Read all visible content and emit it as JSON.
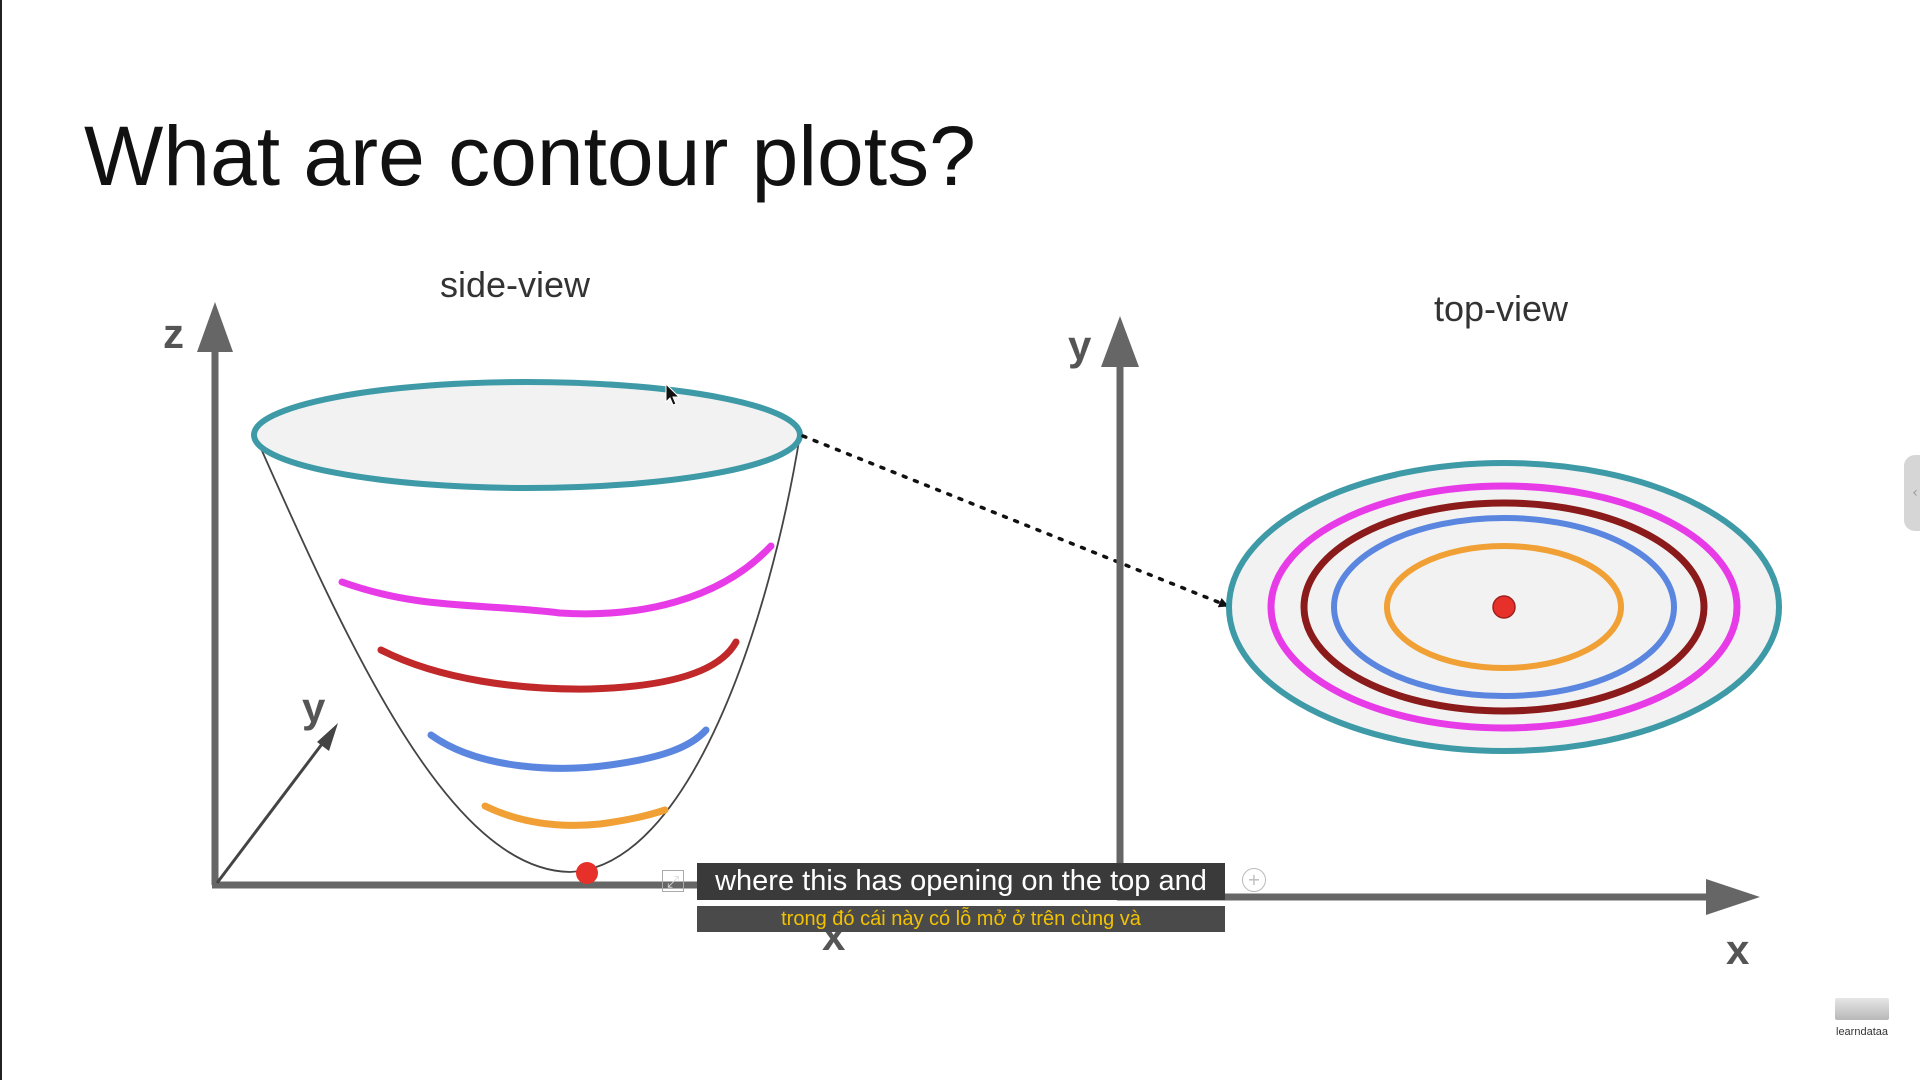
{
  "slide": {
    "title": "What are contour plots?",
    "side_view_label": "side-view",
    "top_view_label": "top-view"
  },
  "axes": {
    "side": {
      "x": "x",
      "y": "y",
      "z": "z"
    },
    "top": {
      "x": "x",
      "y": "y"
    }
  },
  "contour_levels": [
    {
      "name": "orange",
      "color": "#f0a035"
    },
    {
      "name": "blue",
      "color": "#5a86e0"
    },
    {
      "name": "dark-red",
      "color": "#8b1a1a"
    },
    {
      "name": "magenta",
      "color": "#e83be8"
    },
    {
      "name": "teal",
      "color": "#3d9aa6"
    }
  ],
  "colors": {
    "axis": "#666666",
    "surface_fill": "#f2f2f2",
    "minimum_point": "#e8302a",
    "side_red_band": "#c0282a"
  },
  "subtitles": {
    "english": "where this has opening on the top and",
    "vietnamese": "trong đó cái này có lỗ mở ở trên cùng và"
  },
  "watermark": {
    "text": "learndataa"
  },
  "icons": {
    "expand": "expand-icon",
    "add": "add-circle-icon",
    "side_tab": "chevron-left-icon"
  }
}
